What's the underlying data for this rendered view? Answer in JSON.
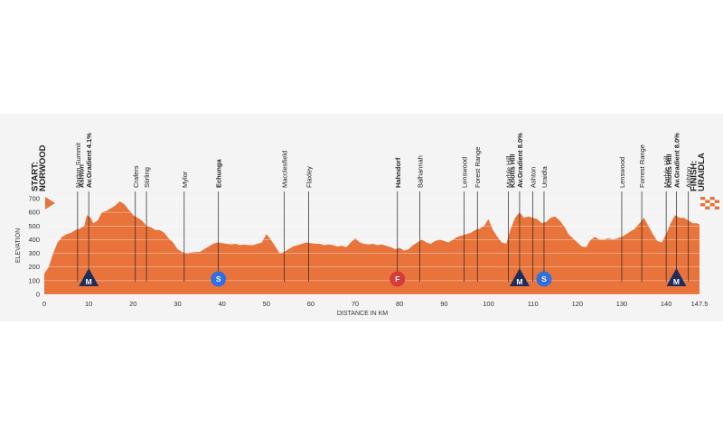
{
  "chart_data": {
    "type": "area",
    "xlabel": "DISTANCE IN KM",
    "ylabel": "ELEVATION",
    "xlim": [
      0,
      147.5
    ],
    "ylim": [
      0,
      700
    ],
    "x_ticks": [
      "0",
      "10",
      "20",
      "30",
      "40",
      "50",
      "60",
      "70",
      "80",
      "90",
      "100",
      "110",
      "120",
      "130",
      "140",
      "147.5"
    ],
    "y_ticks": [
      "0",
      "100",
      "200",
      "300",
      "400",
      "500",
      "600",
      "700"
    ],
    "colors": {
      "fill": "#e8743b",
      "mountain": "#1f2d5c",
      "sprint": "#2f6fe0",
      "feed": "#d63a3a",
      "line": "#222222"
    },
    "profile": [
      [
        0,
        150
      ],
      [
        1,
        200
      ],
      [
        2,
        300
      ],
      [
        3,
        380
      ],
      [
        4,
        420
      ],
      [
        5,
        440
      ],
      [
        6,
        450
      ],
      [
        7,
        470
      ],
      [
        8,
        480
      ],
      [
        9,
        500
      ],
      [
        9.6,
        580
      ],
      [
        10.5,
        560
      ],
      [
        11,
        520
      ],
      [
        12,
        540
      ],
      [
        13,
        600
      ],
      [
        14,
        610
      ],
      [
        15,
        630
      ],
      [
        16,
        650
      ],
      [
        17,
        680
      ],
      [
        18,
        660
      ],
      [
        19,
        620
      ],
      [
        20,
        580
      ],
      [
        21,
        560
      ],
      [
        22,
        540
      ],
      [
        23,
        500
      ],
      [
        24,
        490
      ],
      [
        25,
        470
      ],
      [
        26,
        470
      ],
      [
        27,
        450
      ],
      [
        28,
        410
      ],
      [
        29,
        380
      ],
      [
        30,
        330
      ],
      [
        31,
        310
      ],
      [
        32,
        300
      ],
      [
        33,
        305
      ],
      [
        34,
        310
      ],
      [
        35,
        310
      ],
      [
        36,
        330
      ],
      [
        37,
        350
      ],
      [
        38,
        370
      ],
      [
        39,
        380
      ],
      [
        40,
        375
      ],
      [
        41,
        370
      ],
      [
        42,
        365
      ],
      [
        43,
        370
      ],
      [
        44,
        360
      ],
      [
        45,
        365
      ],
      [
        46,
        360
      ],
      [
        47,
        360
      ],
      [
        48,
        370
      ],
      [
        49,
        380
      ],
      [
        50,
        440
      ],
      [
        51,
        400
      ],
      [
        52,
        350
      ],
      [
        53,
        300
      ],
      [
        54,
        310
      ],
      [
        55,
        330
      ],
      [
        56,
        350
      ],
      [
        57,
        360
      ],
      [
        58,
        370
      ],
      [
        59,
        380
      ],
      [
        60,
        375
      ],
      [
        61,
        370
      ],
      [
        62,
        370
      ],
      [
        63,
        360
      ],
      [
        64,
        365
      ],
      [
        65,
        360
      ],
      [
        66,
        350
      ],
      [
        67,
        355
      ],
      [
        68,
        345
      ],
      [
        69,
        380
      ],
      [
        70,
        410
      ],
      [
        71,
        380
      ],
      [
        72,
        370
      ],
      [
        73,
        365
      ],
      [
        74,
        370
      ],
      [
        75,
        360
      ],
      [
        76,
        365
      ],
      [
        77,
        355
      ],
      [
        78,
        345
      ],
      [
        79,
        330
      ],
      [
        80,
        340
      ],
      [
        81,
        320
      ],
      [
        82,
        330
      ],
      [
        83,
        360
      ],
      [
        84,
        380
      ],
      [
        85,
        400
      ],
      [
        86,
        380
      ],
      [
        87,
        370
      ],
      [
        88,
        390
      ],
      [
        89,
        400
      ],
      [
        90,
        390
      ],
      [
        91,
        380
      ],
      [
        92,
        400
      ],
      [
        93,
        420
      ],
      [
        94,
        430
      ],
      [
        95,
        440
      ],
      [
        96,
        450
      ],
      [
        97,
        470
      ],
      [
        98,
        480
      ],
      [
        99,
        500
      ],
      [
        100,
        550
      ],
      [
        101,
        470
      ],
      [
        102,
        420
      ],
      [
        103,
        380
      ],
      [
        104,
        370
      ],
      [
        105,
        480
      ],
      [
        106,
        560
      ],
      [
        107,
        600
      ],
      [
        108,
        560
      ],
      [
        109,
        570
      ],
      [
        110,
        560
      ],
      [
        111,
        550
      ],
      [
        112,
        520
      ],
      [
        113,
        530
      ],
      [
        114,
        560
      ],
      [
        115,
        570
      ],
      [
        116,
        540
      ],
      [
        117,
        500
      ],
      [
        118,
        440
      ],
      [
        119,
        410
      ],
      [
        120,
        380
      ],
      [
        121,
        350
      ],
      [
        122,
        345
      ],
      [
        123,
        400
      ],
      [
        124,
        420
      ],
      [
        125,
        400
      ],
      [
        126,
        400
      ],
      [
        127,
        410
      ],
      [
        128,
        400
      ],
      [
        129,
        410
      ],
      [
        130,
        420
      ],
      [
        131,
        440
      ],
      [
        132,
        460
      ],
      [
        133,
        480
      ],
      [
        134,
        520
      ],
      [
        135,
        560
      ],
      [
        136,
        500
      ],
      [
        137,
        440
      ],
      [
        138,
        390
      ],
      [
        139,
        380
      ],
      [
        140,
        440
      ],
      [
        141,
        520
      ],
      [
        142,
        580
      ],
      [
        143,
        560
      ],
      [
        144,
        560
      ],
      [
        145,
        540
      ],
      [
        146,
        520
      ],
      [
        147,
        520
      ],
      [
        147.5,
        510
      ]
    ],
    "markers": [
      {
        "type": "mountain",
        "x": 10,
        "letter": "M"
      },
      {
        "type": "sprint",
        "x": 39.2,
        "letter": "S"
      },
      {
        "type": "feed",
        "x": 79.5,
        "letter": "F"
      },
      {
        "type": "mountain",
        "x": 107,
        "letter": "M"
      },
      {
        "type": "sprint",
        "x": 112.5,
        "letter": "S"
      },
      {
        "type": "mountain",
        "x": 142.3,
        "letter": "M"
      }
    ],
    "labels": [
      {
        "x": 0,
        "lines": [
          "START:",
          "NORWOOD"
        ],
        "bold": true,
        "tick": false
      },
      {
        "x": 7.5,
        "lines": [
          "Norton Summit"
        ],
        "bold": false,
        "tick": true
      },
      {
        "x": 10,
        "lines": [
          "Ashton",
          "Av.Gradient 4.1%"
        ],
        "bold": true,
        "tick": true
      },
      {
        "x": 20.5,
        "lines": [
          "Crafers"
        ],
        "bold": false,
        "tick": true
      },
      {
        "x": 23,
        "lines": [
          "Stirling"
        ],
        "bold": false,
        "tick": true
      },
      {
        "x": 31.5,
        "lines": [
          "Mylor"
        ],
        "bold": false,
        "tick": true
      },
      {
        "x": 39.2,
        "lines": [
          "Echunga"
        ],
        "bold": true,
        "tick": true
      },
      {
        "x": 54,
        "lines": [
          "Macclesfield"
        ],
        "bold": false,
        "tick": true
      },
      {
        "x": 59.5,
        "lines": [
          "Flaxley"
        ],
        "bold": false,
        "tick": true
      },
      {
        "x": 79.5,
        "lines": [
          "Hahndorf"
        ],
        "bold": true,
        "tick": true
      },
      {
        "x": 84.5,
        "lines": [
          "Balhannah"
        ],
        "bold": false,
        "tick": true
      },
      {
        "x": 94.5,
        "lines": [
          "Lenswood"
        ],
        "bold": false,
        "tick": true
      },
      {
        "x": 97.5,
        "lines": [
          "Forest Range"
        ],
        "bold": false,
        "tick": true
      },
      {
        "x": 104.5,
        "lines": [
          "Marble Hill"
        ],
        "bold": false,
        "tick": true
      },
      {
        "x": 107,
        "lines": [
          "Knotts Hill",
          "Av.Gradient 8.0%"
        ],
        "bold": true,
        "tick": true
      },
      {
        "x": 110,
        "lines": [
          "Ashton"
        ],
        "bold": false,
        "tick": true
      },
      {
        "x": 112.5,
        "lines": [
          "Uraidla"
        ],
        "bold": false,
        "tick": true
      },
      {
        "x": 130,
        "lines": [
          "Lenswood"
        ],
        "bold": false,
        "tick": true
      },
      {
        "x": 134.5,
        "lines": [
          "Forrest Range"
        ],
        "bold": false,
        "tick": true
      },
      {
        "x": 140,
        "lines": [
          "Marble Hill"
        ],
        "bold": false,
        "tick": true
      },
      {
        "x": 142.3,
        "lines": [
          "Knotts Hill",
          "Av.Gradient 8.0%"
        ],
        "bold": true,
        "tick": true
      },
      {
        "x": 145,
        "lines": [
          "Ashton"
        ],
        "bold": false,
        "tick": true
      },
      {
        "x": 147.5,
        "lines": [
          "FINISH:",
          "URAIDLA"
        ],
        "bold": true,
        "tick": false
      }
    ]
  }
}
